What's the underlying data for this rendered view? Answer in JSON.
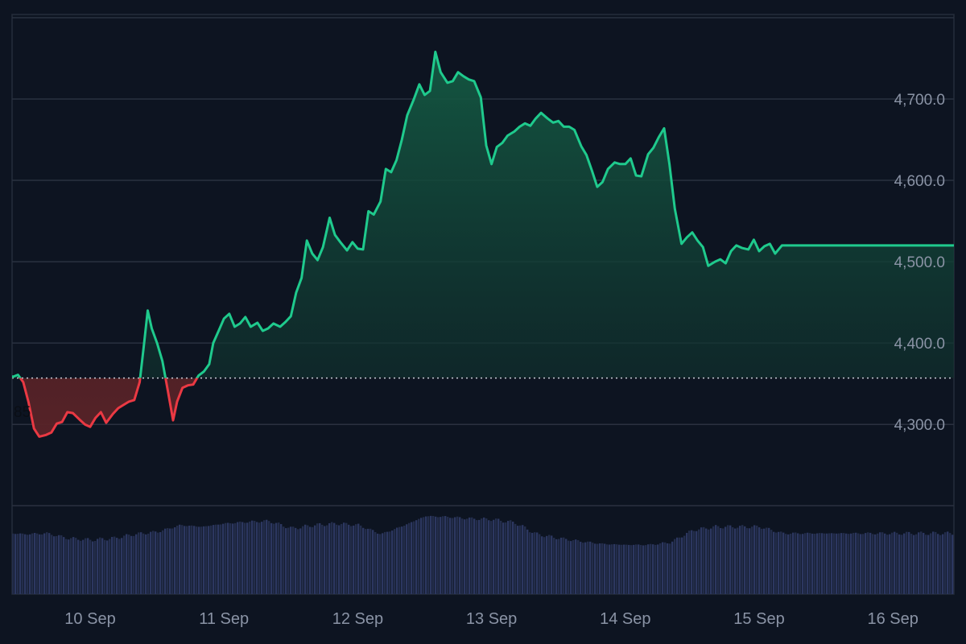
{
  "chart_data": {
    "type": "area",
    "title": "",
    "xlabel": "",
    "ylabel": "",
    "ylim": [
      4200,
      4800
    ],
    "y_ticks": [
      4300,
      4400,
      4500,
      4600,
      4700
    ],
    "y_tick_labels": [
      "4,300.0",
      "4,400.0",
      "4,500.0",
      "4,600.0",
      "4,700.0"
    ],
    "x_tick_labels": [
      "10 Sep",
      "11 Sep",
      "12 Sep",
      "13 Sep",
      "14 Sep",
      "15 Sep",
      "16 Sep"
    ],
    "baseline": {
      "value": 4357,
      "label": "85"
    },
    "price_series": {
      "name": "",
      "x_unit": "days since 9 Sep 00:00",
      "points": [
        [
          0.33,
          4359
        ],
        [
          0.4,
          4357
        ],
        [
          0.46,
          4361
        ],
        [
          0.5,
          4352
        ],
        [
          0.54,
          4327
        ],
        [
          0.58,
          4295
        ],
        [
          0.62,
          4285
        ],
        [
          0.67,
          4287
        ],
        [
          0.71,
          4290
        ],
        [
          0.75,
          4301
        ],
        [
          0.79,
          4303
        ],
        [
          0.83,
          4315
        ],
        [
          0.87,
          4314
        ],
        [
          0.92,
          4306
        ],
        [
          0.96,
          4300
        ],
        [
          1.0,
          4297
        ],
        [
          1.04,
          4308
        ],
        [
          1.08,
          4315
        ],
        [
          1.12,
          4302
        ],
        [
          1.17,
          4313
        ],
        [
          1.21,
          4320
        ],
        [
          1.25,
          4324
        ],
        [
          1.29,
          4328
        ],
        [
          1.33,
          4330
        ],
        [
          1.37,
          4352
        ],
        [
          1.4,
          4395
        ],
        [
          1.43,
          4440
        ],
        [
          1.46,
          4418
        ],
        [
          1.5,
          4400
        ],
        [
          1.54,
          4378
        ],
        [
          1.58,
          4342
        ],
        [
          1.62,
          4305
        ],
        [
          1.65,
          4328
        ],
        [
          1.69,
          4345
        ],
        [
          1.73,
          4348
        ],
        [
          1.77,
          4349
        ],
        [
          1.81,
          4360
        ],
        [
          1.85,
          4365
        ],
        [
          1.89,
          4374
        ],
        [
          1.92,
          4400
        ],
        [
          1.96,
          4415
        ],
        [
          2.0,
          4430
        ],
        [
          2.04,
          4436
        ],
        [
          2.08,
          4420
        ],
        [
          2.12,
          4424
        ],
        [
          2.16,
          4432
        ],
        [
          2.2,
          4420
        ],
        [
          2.25,
          4425
        ],
        [
          2.29,
          4415
        ],
        [
          2.33,
          4418
        ],
        [
          2.37,
          4424
        ],
        [
          2.42,
          4420
        ],
        [
          2.46,
          4426
        ],
        [
          2.5,
          4433
        ],
        [
          2.54,
          4462
        ],
        [
          2.58,
          4480
        ],
        [
          2.62,
          4526
        ],
        [
          2.66,
          4510
        ],
        [
          2.7,
          4502
        ],
        [
          2.74,
          4518
        ],
        [
          2.79,
          4554
        ],
        [
          2.83,
          4533
        ],
        [
          2.87,
          4524
        ],
        [
          2.92,
          4514
        ],
        [
          2.96,
          4524
        ],
        [
          3.0,
          4516
        ],
        [
          3.04,
          4515
        ],
        [
          3.08,
          4562
        ],
        [
          3.12,
          4558
        ],
        [
          3.17,
          4574
        ],
        [
          3.21,
          4614
        ],
        [
          3.25,
          4610
        ],
        [
          3.29,
          4625
        ],
        [
          3.33,
          4650
        ],
        [
          3.37,
          4680
        ],
        [
          3.42,
          4700
        ],
        [
          3.46,
          4718
        ],
        [
          3.5,
          4705
        ],
        [
          3.54,
          4710
        ],
        [
          3.58,
          4758
        ],
        [
          3.62,
          4733
        ],
        [
          3.67,
          4720
        ],
        [
          3.71,
          4722
        ],
        [
          3.75,
          4733
        ],
        [
          3.79,
          4728
        ],
        [
          3.83,
          4724
        ],
        [
          3.87,
          4722
        ],
        [
          3.92,
          4702
        ],
        [
          3.96,
          4643
        ],
        [
          4.0,
          4620
        ],
        [
          4.04,
          4641
        ],
        [
          4.08,
          4646
        ],
        [
          4.12,
          4655
        ],
        [
          4.17,
          4660
        ],
        [
          4.21,
          4666
        ],
        [
          4.25,
          4670
        ],
        [
          4.29,
          4667
        ],
        [
          4.33,
          4676
        ],
        [
          4.37,
          4683
        ],
        [
          4.42,
          4676
        ],
        [
          4.46,
          4671
        ],
        [
          4.5,
          4673
        ],
        [
          4.54,
          4666
        ],
        [
          4.58,
          4666
        ],
        [
          4.62,
          4662
        ],
        [
          4.67,
          4642
        ],
        [
          4.71,
          4631
        ],
        [
          4.75,
          4612
        ],
        [
          4.79,
          4592
        ],
        [
          4.83,
          4598
        ],
        [
          4.87,
          4614
        ],
        [
          4.92,
          4622
        ],
        [
          4.96,
          4620
        ],
        [
          5.0,
          4620
        ],
        [
          5.04,
          4627
        ],
        [
          5.08,
          4606
        ],
        [
          5.12,
          4605
        ],
        [
          5.17,
          4632
        ],
        [
          5.21,
          4640
        ],
        [
          5.25,
          4653
        ],
        [
          5.29,
          4664
        ],
        [
          5.33,
          4620
        ],
        [
          5.37,
          4565
        ],
        [
          5.42,
          4522
        ],
        [
          5.46,
          4530
        ],
        [
          5.5,
          4536
        ],
        [
          5.54,
          4526
        ],
        [
          5.58,
          4518
        ],
        [
          5.62,
          4495
        ],
        [
          5.67,
          4500
        ],
        [
          5.71,
          4503
        ],
        [
          5.75,
          4498
        ],
        [
          5.79,
          4513
        ],
        [
          5.83,
          4520
        ],
        [
          5.87,
          4517
        ],
        [
          5.92,
          4515
        ],
        [
          5.96,
          4527
        ],
        [
          6.0,
          4513
        ],
        [
          6.04,
          4519
        ],
        [
          6.08,
          4522
        ],
        [
          6.12,
          4510
        ],
        [
          6.17,
          4520
        ]
      ]
    },
    "volume_series": {
      "name": "",
      "x_unit": "days since 9 Sep 00:00",
      "relative_scale": "1.0 = tallest visible bar",
      "points": [
        [
          0.33,
          0.75
        ],
        [
          0.5,
          0.73
        ],
        [
          0.67,
          0.74
        ],
        [
          0.83,
          0.68
        ],
        [
          1.0,
          0.66
        ],
        [
          1.17,
          0.68
        ],
        [
          1.33,
          0.73
        ],
        [
          1.5,
          0.76
        ],
        [
          1.67,
          0.84
        ],
        [
          1.83,
          0.82
        ],
        [
          2.0,
          0.86
        ],
        [
          2.17,
          0.88
        ],
        [
          2.33,
          0.89
        ],
        [
          2.5,
          0.8
        ],
        [
          2.67,
          0.84
        ],
        [
          2.83,
          0.86
        ],
        [
          3.0,
          0.84
        ],
        [
          3.17,
          0.73
        ],
        [
          3.33,
          0.83
        ],
        [
          3.5,
          0.95
        ],
        [
          3.67,
          0.94
        ],
        [
          3.83,
          0.92
        ],
        [
          4.0,
          0.91
        ],
        [
          4.17,
          0.87
        ],
        [
          4.33,
          0.73
        ],
        [
          4.5,
          0.68
        ],
        [
          4.67,
          0.64
        ],
        [
          4.83,
          0.61
        ],
        [
          5.0,
          0.6
        ],
        [
          5.17,
          0.6
        ],
        [
          5.33,
          0.63
        ],
        [
          5.5,
          0.78
        ],
        [
          5.67,
          0.82
        ],
        [
          5.83,
          0.82
        ],
        [
          6.0,
          0.82
        ],
        [
          6.17,
          0.74
        ]
      ]
    },
    "colors": {
      "background": "#0d1421",
      "grid": "#2a3140",
      "up_line": "#1fca8d",
      "up_fill_top": "#145a43",
      "down_line": "#ea3943",
      "down_fill": "#5a2328",
      "baseline_line": "#c7ccd6",
      "volume": "#232d4b",
      "volume_stripe": "#2c3760",
      "axis_text": "#8a93a5"
    }
  }
}
